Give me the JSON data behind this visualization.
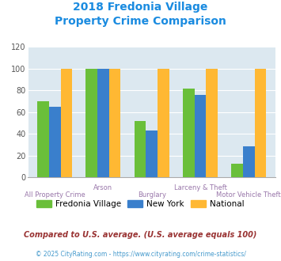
{
  "title_line1": "2018 Fredonia Village",
  "title_line2": "Property Crime Comparison",
  "title_color": "#1a8be0",
  "categories": [
    "All Property Crime",
    "Arson",
    "Burglary",
    "Larceny & Theft",
    "Motor Vehicle Theft"
  ],
  "fredonia": [
    70,
    100,
    52,
    82,
    13
  ],
  "new_york": [
    65,
    100,
    43,
    76,
    29
  ],
  "national": [
    100,
    100,
    100,
    100,
    100
  ],
  "color_fredonia": "#6abf3a",
  "color_new_york": "#3a7fcc",
  "color_national": "#ffb833",
  "ylim": [
    0,
    120
  ],
  "yticks": [
    0,
    20,
    40,
    60,
    80,
    100,
    120
  ],
  "plot_bg": "#dce8f0",
  "footnote1": "Compared to U.S. average. (U.S. average equals 100)",
  "footnote2": "© 2025 CityRating.com - https://www.cityrating.com/crime-statistics/",
  "footnote1_color": "#993333",
  "footnote2_color": "#4499cc",
  "legend_labels": [
    "Fredonia Village",
    "New York",
    "National"
  ],
  "xlabel_color": "#9977aa"
}
